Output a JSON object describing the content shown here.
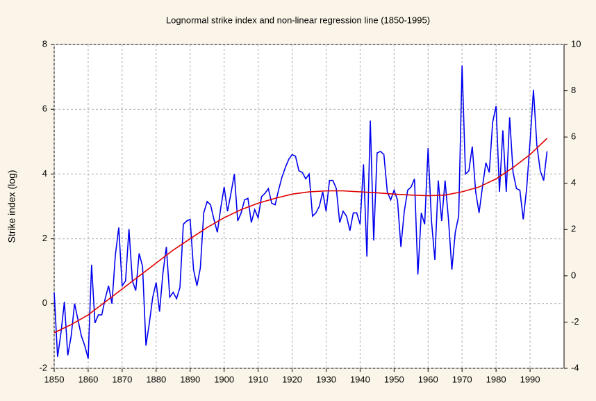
{
  "chart_data": {
    "type": "line",
    "title": "Lognormal strike index and non-linear regression line (1850-1995)",
    "y_label": "Strike index (log)",
    "xlim": [
      1850,
      2000
    ],
    "xticks": [
      1850,
      1860,
      1870,
      1880,
      1890,
      1900,
      1910,
      1920,
      1930,
      1940,
      1950,
      1960,
      1970,
      1980,
      1990
    ],
    "ylim": [
      -2,
      8
    ],
    "yticks": [
      -2,
      0,
      2,
      4,
      6,
      8
    ],
    "y2lim": [
      -4,
      10
    ],
    "y2ticks": [
      -4,
      -2,
      0,
      2,
      4,
      6,
      8,
      10
    ],
    "grid": true,
    "series": [
      {
        "color": "#0000ee",
        "x": [
          1850,
          1851,
          1852,
          1853,
          1854,
          1855,
          1856,
          1857,
          1858,
          1859,
          1860,
          1861,
          1862,
          1863,
          1864,
          1865,
          1866,
          1867,
          1868,
          1869,
          1870,
          1871,
          1872,
          1873,
          1874,
          1875,
          1876,
          1877,
          1878,
          1879,
          1880,
          1881,
          1882,
          1883,
          1884,
          1885,
          1886,
          1887,
          1888,
          1889,
          1890,
          1891,
          1892,
          1893,
          1894,
          1895,
          1896,
          1897,
          1898,
          1899,
          1900,
          1901,
          1902,
          1903,
          1904,
          1905,
          1906,
          1907,
          1908,
          1909,
          1910,
          1911,
          1912,
          1913,
          1914,
          1915,
          1916,
          1917,
          1918,
          1919,
          1920,
          1921,
          1922,
          1923,
          1924,
          1925,
          1926,
          1927,
          1928,
          1929,
          1930,
          1931,
          1932,
          1933,
          1934,
          1935,
          1936,
          1937,
          1938,
          1939,
          1940,
          1941,
          1942,
          1943,
          1944,
          1945,
          1946,
          1947,
          1948,
          1949,
          1950,
          1951,
          1952,
          1953,
          1954,
          1955,
          1956,
          1957,
          1958,
          1959,
          1960,
          1961,
          1962,
          1963,
          1964,
          1965,
          1966,
          1967,
          1968,
          1969,
          1970,
          1971,
          1972,
          1973,
          1974,
          1975,
          1976,
          1977,
          1978,
          1979,
          1980,
          1981,
          1982,
          1983,
          1984,
          1985,
          1986,
          1987,
          1988,
          1989,
          1990,
          1991,
          1992,
          1993,
          1994,
          1995
        ],
        "values": [
          0.35,
          -1.65,
          -0.9,
          0.05,
          -1.6,
          -1.0,
          0.0,
          -0.5,
          -1.0,
          -1.3,
          -1.7,
          1.2,
          -0.6,
          -0.35,
          -0.35,
          0.15,
          0.55,
          0.0,
          1.5,
          2.35,
          0.55,
          0.7,
          2.3,
          0.7,
          0.4,
          1.55,
          1.15,
          -1.3,
          -0.6,
          0.2,
          0.65,
          -0.25,
          0.95,
          1.75,
          0.2,
          0.35,
          0.15,
          0.5,
          2.45,
          2.55,
          2.6,
          1.05,
          0.55,
          1.1,
          2.8,
          3.15,
          3.05,
          2.6,
          2.2,
          2.95,
          3.6,
          2.85,
          3.4,
          4.0,
          2.55,
          2.8,
          3.2,
          3.25,
          2.5,
          2.9,
          2.65,
          3.3,
          3.4,
          3.55,
          3.1,
          3.05,
          3.5,
          3.9,
          4.2,
          4.45,
          4.6,
          4.55,
          4.1,
          4.05,
          3.85,
          4.0,
          2.7,
          2.8,
          3.0,
          3.45,
          2.85,
          3.8,
          3.8,
          3.55,
          2.5,
          2.85,
          2.7,
          2.25,
          2.8,
          2.8,
          2.45,
          4.3,
          1.45,
          5.65,
          1.95,
          4.65,
          4.7,
          4.6,
          3.45,
          3.2,
          3.5,
          3.2,
          1.75,
          2.85,
          3.5,
          3.6,
          3.85,
          0.9,
          2.8,
          2.45,
          4.8,
          2.55,
          1.35,
          3.8,
          2.55,
          3.8,
          2.6,
          1.05,
          2.2,
          2.7,
          7.35,
          4.0,
          4.1,
          4.85,
          3.45,
          2.8,
          3.6,
          4.35,
          4.05,
          5.6,
          6.1,
          3.45,
          5.35,
          3.45,
          5.75,
          4.05,
          3.55,
          3.5,
          2.6,
          3.55,
          5.0,
          6.6,
          4.9,
          4.1,
          3.8,
          4.7
        ]
      },
      {
        "color": "#e00000",
        "x": [
          1850,
          1855,
          1860,
          1865,
          1870,
          1875,
          1880,
          1885,
          1890,
          1895,
          1900,
          1905,
          1910,
          1915,
          1920,
          1925,
          1930,
          1935,
          1940,
          1945,
          1950,
          1955,
          1960,
          1965,
          1970,
          1975,
          1980,
          1985,
          1990,
          1995
        ],
        "values": [
          -0.9,
          -0.65,
          -0.35,
          0.05,
          0.45,
          0.85,
          1.25,
          1.65,
          2.0,
          2.35,
          2.65,
          2.9,
          3.1,
          3.25,
          3.38,
          3.45,
          3.48,
          3.48,
          3.45,
          3.42,
          3.38,
          3.35,
          3.33,
          3.35,
          3.45,
          3.6,
          3.85,
          4.2,
          4.6,
          5.1
        ]
      }
    ]
  }
}
